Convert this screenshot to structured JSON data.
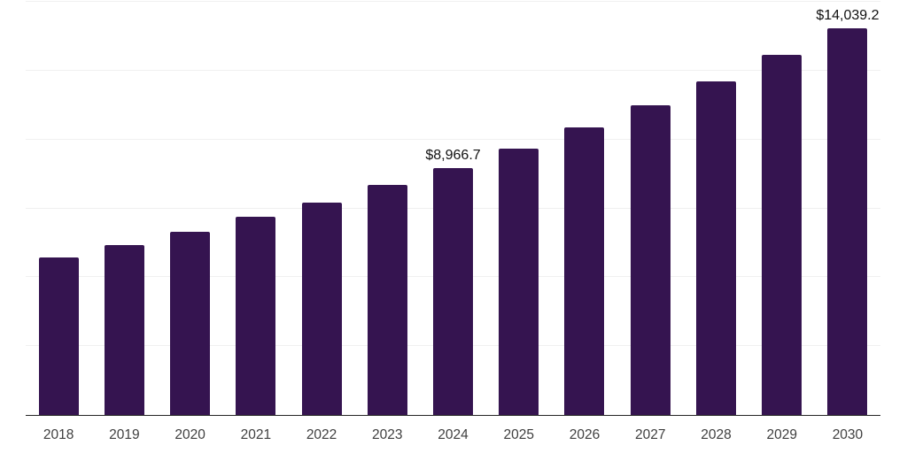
{
  "chart": {
    "colors": {
      "background": "#ffffff",
      "bar": "#351450",
      "axis_line": "#262626",
      "gridline": "#f0f0f0",
      "tick_label": "#3f3f3f",
      "data_label": "#111111"
    }
  },
  "chart_data": {
    "type": "bar",
    "title": "",
    "xlabel": "",
    "ylabel": "",
    "categories": [
      "2018",
      "2019",
      "2020",
      "2021",
      "2022",
      "2023",
      "2024",
      "2025",
      "2026",
      "2027",
      "2028",
      "2029",
      "2030"
    ],
    "values": [
      5728,
      6170,
      6655,
      7180,
      7708,
      8360,
      8966.7,
      9672,
      10442,
      11245,
      12100,
      13082,
      14039.2
    ],
    "point_labels": [
      null,
      null,
      null,
      null,
      null,
      null,
      "$8,966.7",
      null,
      null,
      null,
      null,
      null,
      "$14,039.2"
    ],
    "ylim": [
      0,
      15000
    ],
    "gridline_step": 2500,
    "grid": "horizontal",
    "y_axis_tick_labels": "none",
    "legend": "none"
  }
}
